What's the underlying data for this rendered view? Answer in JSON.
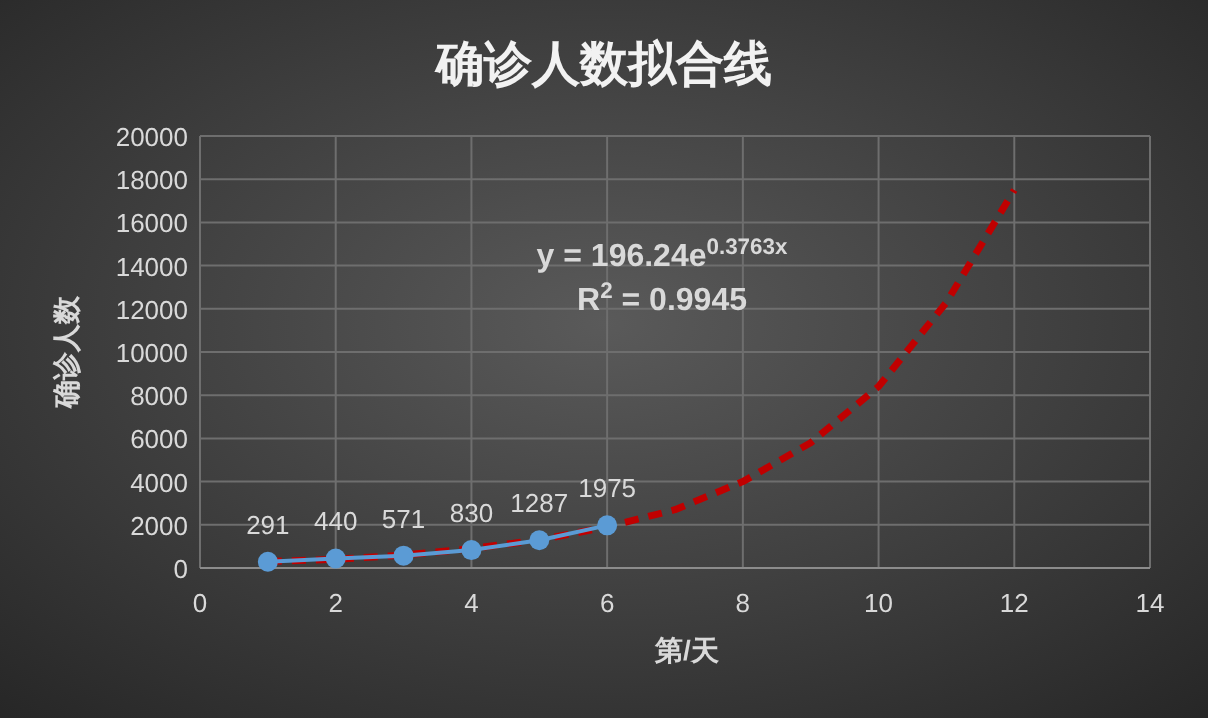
{
  "chart_data": {
    "type": "line",
    "title": "确诊人数拟合线",
    "xlabel": "第/天",
    "ylabel": "确诊人数",
    "annotations": [
      "y = 196.24e$^{0.3763x}$",
      "R$^{2}$ = 0.9945"
    ],
    "xlim": [
      0,
      14
    ],
    "xticks": [
      0,
      2,
      4,
      6,
      8,
      10,
      12,
      14
    ],
    "ylim": [
      0,
      20000
    ],
    "yticks": [
      0,
      2000,
      4000,
      6000,
      8000,
      10000,
      12000,
      14000,
      16000,
      18000,
      20000
    ],
    "grid": true,
    "series": [
      {
        "color": "#c00000",
        "line_style": "dashed",
        "marker": "none",
        "x": [
          1,
          2,
          3,
          4,
          5,
          6,
          7,
          8,
          9,
          10,
          11,
          12
        ],
        "values": [
          300,
          400,
          600,
          900,
          1300,
          1900,
          2700,
          4000,
          5800,
          8400,
          12300,
          17500
        ]
      },
      {
        "color": "#5b9bd5",
        "line_style": "solid",
        "marker": "circle",
        "data_labels": true,
        "x": [
          1,
          2,
          3,
          4,
          5,
          6
        ],
        "values": [
          291,
          440,
          571,
          830,
          1287,
          1975
        ]
      }
    ]
  }
}
